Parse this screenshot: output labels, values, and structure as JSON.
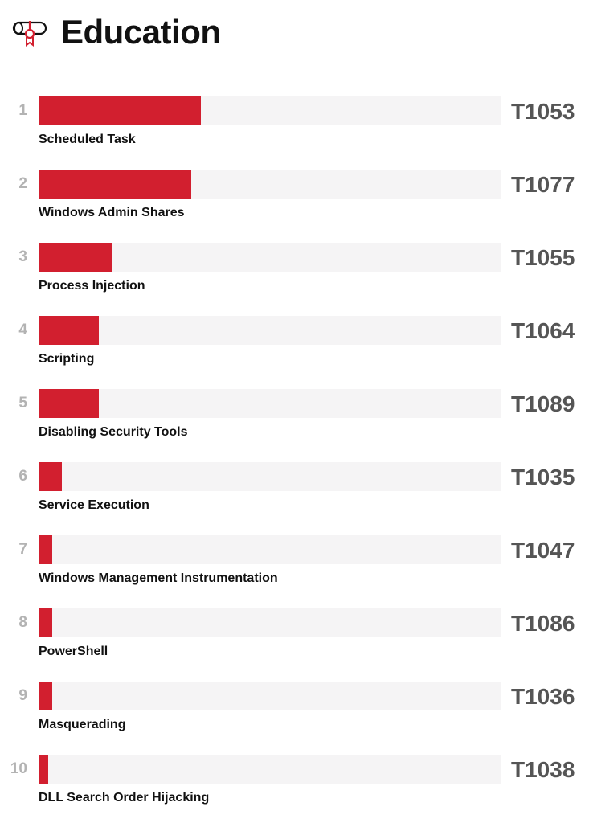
{
  "header": {
    "title": "Education",
    "icon": "diploma-scroll-icon"
  },
  "colors": {
    "bar": "#d21f2f",
    "track": "#f5f4f5",
    "code": "#555555",
    "rank": "#b3b3b3"
  },
  "chart_data": {
    "type": "bar",
    "orientation": "horizontal",
    "title": "Education",
    "grid": false,
    "value_unit": "relative share of track (%)",
    "xlim": [
      0,
      100
    ],
    "items": [
      {
        "rank": "1",
        "code": "T1053",
        "name": "Scheduled Task",
        "value": 35
      },
      {
        "rank": "2",
        "code": "T1077",
        "name": "Windows Admin Shares",
        "value": 33
      },
      {
        "rank": "3",
        "code": "T1055",
        "name": "Process Injection",
        "value": 16
      },
      {
        "rank": "4",
        "code": "T1064",
        "name": "Scripting",
        "value": 13
      },
      {
        "rank": "5",
        "code": "T1089",
        "name": "Disabling Security Tools",
        "value": 13
      },
      {
        "rank": "6",
        "code": "T1035",
        "name": "Service Execution",
        "value": 5
      },
      {
        "rank": "7",
        "code": "T1047",
        "name": "Windows Management Instrumentation",
        "value": 3
      },
      {
        "rank": "8",
        "code": "T1086",
        "name": "PowerShell",
        "value": 3
      },
      {
        "rank": "9",
        "code": "T1036",
        "name": "Masquerading",
        "value": 3
      },
      {
        "rank": "10",
        "code": "T1038",
        "name": "DLL Search Order Hijacking",
        "value": 2
      }
    ]
  }
}
